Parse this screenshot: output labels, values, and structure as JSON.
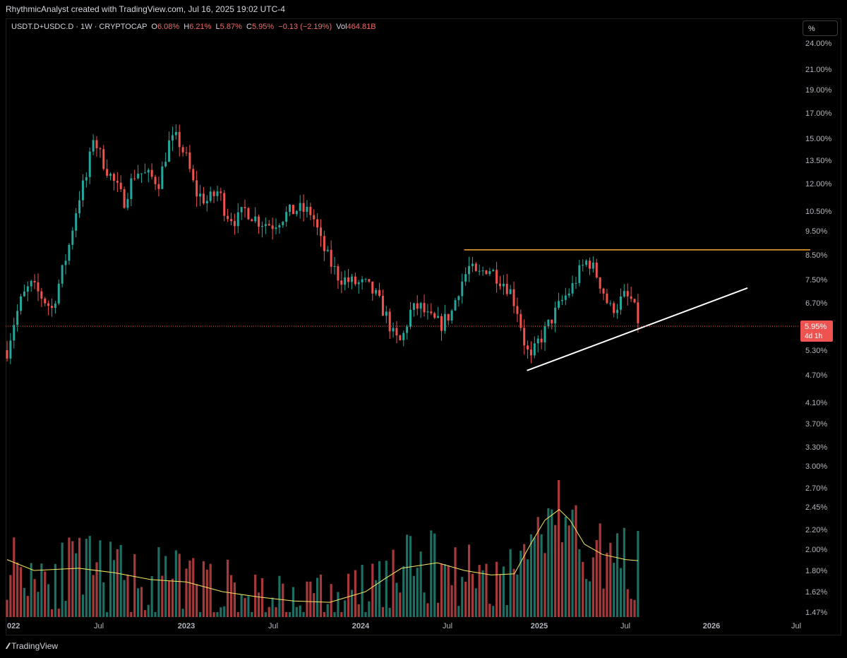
{
  "header": {
    "attribution": "RhythmicAnalyst created with TradingView.com, Jul 16, 2025 19:02 UTC-4"
  },
  "legend": {
    "symbol": "USDT.D+USDC.D",
    "interval": "1W",
    "exchange": "CRYPTOCAP",
    "open_label": "O",
    "open": "6.08%",
    "high_label": "H",
    "high": "6.21%",
    "low_label": "L",
    "low": "5.87%",
    "close_label": "C",
    "close": "5.95%",
    "change": "−0.13 (−2.19%)",
    "vol_label": "Vol",
    "vol": "464.81B"
  },
  "scale_button": "%",
  "price_badge": {
    "value": "5.95%",
    "countdown": "4d 1h"
  },
  "footer": {
    "brand": "TradingView",
    "brand_icon": "tradingview-logo-icon"
  },
  "colors": {
    "up": "#26a69a",
    "down": "#ef5350",
    "vol_up": "#1f6e63",
    "vol_down": "#a6393a",
    "resistance": "#ffa726",
    "support": "#ffffff",
    "ma": "#f5e663",
    "price_line": "#ef5350"
  },
  "chart_data": {
    "type": "candlestick",
    "interval": "1W",
    "y_scale": "log",
    "y_ticks": [
      "24.00%",
      "21.00%",
      "19.00%",
      "17.00%",
      "15.00%",
      "13.50%",
      "12.00%",
      "10.50%",
      "9.50%",
      "8.50%",
      "7.50%",
      "6.70%",
      "5.95%",
      "5.30%",
      "4.70%",
      "4.10%",
      "3.70%",
      "3.30%",
      "3.00%",
      "2.70%",
      "2.45%",
      "2.20%",
      "2.00%",
      "1.80%",
      "1.62%",
      "1.47%"
    ],
    "x_ticks": [
      "022",
      "Jul",
      "2023",
      "Jul",
      "2024",
      "Jul",
      "2025",
      "Jul",
      "2026",
      "Jul"
    ],
    "price_path": [
      [
        2022.0,
        5.3
      ],
      [
        2022.04,
        6.1
      ],
      [
        2022.08,
        6.8
      ],
      [
        2022.13,
        7.3
      ],
      [
        2022.18,
        7.0
      ],
      [
        2022.25,
        6.5
      ],
      [
        2022.3,
        7.6
      ],
      [
        2022.35,
        9.0
      ],
      [
        2022.4,
        11.2
      ],
      [
        2022.45,
        12.6
      ],
      [
        2022.48,
        15.2
      ],
      [
        2022.52,
        13.8
      ],
      [
        2022.58,
        12.4
      ],
      [
        2022.65,
        11.0
      ],
      [
        2022.72,
        12.8
      ],
      [
        2022.8,
        12.4
      ],
      [
        2022.85,
        12.1
      ],
      [
        2022.9,
        14.6
      ],
      [
        2022.95,
        15.0
      ],
      [
        2023.0,
        13.6
      ],
      [
        2023.05,
        11.5
      ],
      [
        2023.12,
        11.0
      ],
      [
        2023.18,
        11.6
      ],
      [
        2023.22,
        10.4
      ],
      [
        2023.28,
        10.0
      ],
      [
        2023.33,
        10.6
      ],
      [
        2023.4,
        10.0
      ],
      [
        2023.48,
        9.8
      ],
      [
        2023.55,
        10.3
      ],
      [
        2023.62,
        10.6
      ],
      [
        2023.7,
        10.4
      ],
      [
        2023.75,
        9.0
      ],
      [
        2023.8,
        8.2
      ],
      [
        2023.85,
        7.6
      ],
      [
        2023.92,
        7.4
      ],
      [
        2024.0,
        7.3
      ],
      [
        2024.05,
        7.0
      ],
      [
        2024.12,
        6.2
      ],
      [
        2024.16,
        5.6
      ],
      [
        2024.2,
        5.5
      ],
      [
        2024.25,
        6.4
      ],
      [
        2024.3,
        6.6
      ],
      [
        2024.35,
        6.2
      ],
      [
        2024.42,
        6.0
      ],
      [
        2024.48,
        6.4
      ],
      [
        2024.52,
        7.2
      ],
      [
        2024.58,
        8.0
      ],
      [
        2024.62,
        7.6
      ],
      [
        2024.68,
        8.0
      ],
      [
        2024.74,
        7.6
      ],
      [
        2024.8,
        7.2
      ],
      [
        2024.85,
        6.4
      ],
      [
        2024.88,
        5.6
      ],
      [
        2024.92,
        5.0
      ],
      [
        2024.96,
        5.5
      ],
      [
        2025.0,
        5.8
      ],
      [
        2025.05,
        6.3
      ],
      [
        2025.1,
        6.8
      ],
      [
        2025.15,
        7.2
      ],
      [
        2025.2,
        7.9
      ],
      [
        2025.24,
        8.3
      ],
      [
        2025.28,
        7.8
      ],
      [
        2025.32,
        7.2
      ],
      [
        2025.36,
        6.5
      ],
      [
        2025.4,
        6.6
      ],
      [
        2025.44,
        6.9
      ],
      [
        2025.48,
        6.8
      ],
      [
        2025.53,
        5.95
      ]
    ],
    "volume_ma_path": [
      [
        2022.0,
        1.9
      ],
      [
        2022.15,
        1.8
      ],
      [
        2022.4,
        1.82
      ],
      [
        2022.6,
        1.78
      ],
      [
        2022.8,
        1.72
      ],
      [
        2023.0,
        1.7
      ],
      [
        2023.2,
        1.62
      ],
      [
        2023.4,
        1.58
      ],
      [
        2023.6,
        1.55
      ],
      [
        2023.8,
        1.54
      ],
      [
        2024.0,
        1.62
      ],
      [
        2024.1,
        1.72
      ],
      [
        2024.2,
        1.82
      ],
      [
        2024.4,
        1.87
      ],
      [
        2024.55,
        1.8
      ],
      [
        2024.7,
        1.76
      ],
      [
        2024.83,
        1.77
      ],
      [
        2024.92,
        2.05
      ],
      [
        2025.0,
        2.3
      ],
      [
        2025.08,
        2.42
      ],
      [
        2025.14,
        2.3
      ],
      [
        2025.22,
        2.05
      ],
      [
        2025.32,
        1.95
      ],
      [
        2025.45,
        1.9
      ],
      [
        2025.52,
        1.89
      ]
    ],
    "resistance_line": {
      "x_start": 2024.55,
      "x_end": 2026.48,
      "y": 8.7
    },
    "support_line": {
      "x_start": 2024.9,
      "y_start": 4.8,
      "x_end": 2026.13,
      "y_end": 7.2
    },
    "last_price": 5.95,
    "legend_placement": "top-left"
  }
}
